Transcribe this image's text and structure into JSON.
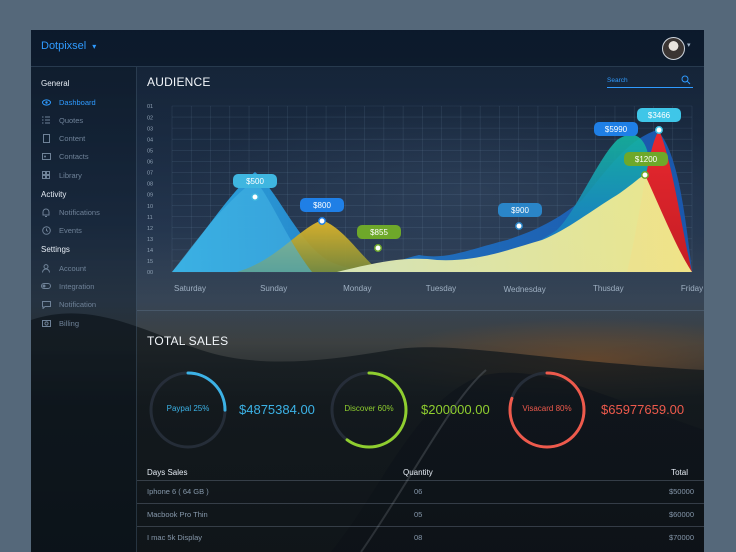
{
  "app": {
    "brand": "Dotpixsel",
    "brand_chevron": "⌄"
  },
  "user": {
    "avatar_icon": "avatar",
    "menu_chevron": "⌄"
  },
  "sidebar": {
    "sections": [
      {
        "title": "General",
        "items": [
          {
            "label": "Dashboard",
            "icon": "eye-icon",
            "active": true
          },
          {
            "label": "Quotes",
            "icon": "list-icon",
            "active": false
          },
          {
            "label": "Content",
            "icon": "document-icon",
            "active": false
          },
          {
            "label": "Contacts",
            "icon": "id-card-icon",
            "active": false
          },
          {
            "label": "Library",
            "icon": "grid-icon",
            "active": false
          }
        ]
      },
      {
        "title": "Activity",
        "items": [
          {
            "label": "Notifications",
            "icon": "bell-icon",
            "active": false
          },
          {
            "label": "Events",
            "icon": "clock-icon",
            "active": false
          }
        ]
      },
      {
        "title": "Settings",
        "items": [
          {
            "label": "Account",
            "icon": "user-icon",
            "active": false
          },
          {
            "label": "Integration",
            "icon": "toggle-icon",
            "active": false
          },
          {
            "label": "Notification",
            "icon": "message-icon",
            "active": false
          },
          {
            "label": "Billing",
            "icon": "camera-icon",
            "active": false
          }
        ]
      }
    ]
  },
  "audience": {
    "title": "AUDIENCE",
    "search_placeholder": "Search"
  },
  "chart_data": {
    "type": "area",
    "title": "AUDIENCE",
    "x_categories": [
      "Saturday",
      "Sunday",
      "Monday",
      "Tuesday",
      "Wednesday",
      "Thusday",
      "Friday"
    ],
    "y_ticks": [
      "01",
      "02",
      "03",
      "04",
      "05",
      "06",
      "07",
      "08",
      "09",
      "10",
      "11",
      "12",
      "13",
      "14",
      "15",
      "00"
    ],
    "grid": true,
    "annotations": [
      {
        "label": "$500",
        "x": 0.7,
        "color": "#3fb6e0"
      },
      {
        "label": "$800",
        "x": 1.6,
        "color": "#1f7fe6"
      },
      {
        "label": "$855",
        "x": 2.4,
        "color": "#6ea82a"
      },
      {
        "label": "$900",
        "x": 4.1,
        "color": "#2a85c8"
      },
      {
        "label": "$5990",
        "x": 5.2,
        "color": "#1f7fe6"
      },
      {
        "label": "$3466",
        "x": 5.5,
        "color": "#3fc6e8"
      },
      {
        "label": "$1200",
        "x": 5.4,
        "color": "#6ea82a"
      }
    ]
  },
  "total_sales": {
    "title": "TOTAL SALES",
    "items": [
      {
        "label": "Paypal 25%",
        "amount": "$4875384.00",
        "color": "#3cb2e6",
        "percent": 25
      },
      {
        "label": "Discover 60%",
        "amount": "$200000.00",
        "color": "#8fce2f",
        "percent": 60
      },
      {
        "label": "Visacard 80%",
        "amount": "$65977659.00",
        "color": "#ee5a4c",
        "percent": 80
      }
    ]
  },
  "table": {
    "headers": {
      "name": "Days Sales",
      "quantity": "Quantity",
      "total": "Total"
    },
    "rows": [
      {
        "name": "Iphone 6 ( 64 GB )",
        "quantity": "06",
        "total": "$50000"
      },
      {
        "name": "Macbook Pro Thin",
        "quantity": "05",
        "total": "$60000"
      },
      {
        "name": "I mac 5k Display",
        "quantity": "08",
        "total": "$70000"
      }
    ]
  }
}
